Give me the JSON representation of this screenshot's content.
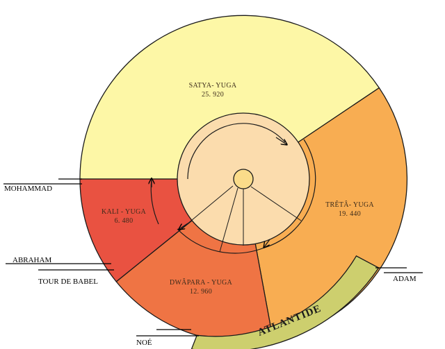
{
  "segments": {
    "satya": {
      "name": "SATYA- YUGA",
      "value": "25. 920",
      "color": "#fdf7a6"
    },
    "treta": {
      "name": "TRÊTÂ- YUGA",
      "value": "19. 440",
      "color": "#f8ad52"
    },
    "dwapara": {
      "name": "DWÂPARA - YUGA",
      "value": "12. 960",
      "color": "#ef7444"
    },
    "kali": {
      "name": "KALI - YUGA",
      "value": "6. 480",
      "color": "#e95241"
    }
  },
  "atlantide": {
    "label": "ATLANTIDE",
    "color": "#cdcf6e"
  },
  "inner_color": "#fbdcad",
  "hub_color": "#fbdc8a",
  "markers": {
    "mohammad": "MOHAMMAD",
    "abraham": "ABRAHAM",
    "tour_de_babel": "TOUR DE BABEL",
    "noe": "NOÉ",
    "adam": "ADAM"
  }
}
